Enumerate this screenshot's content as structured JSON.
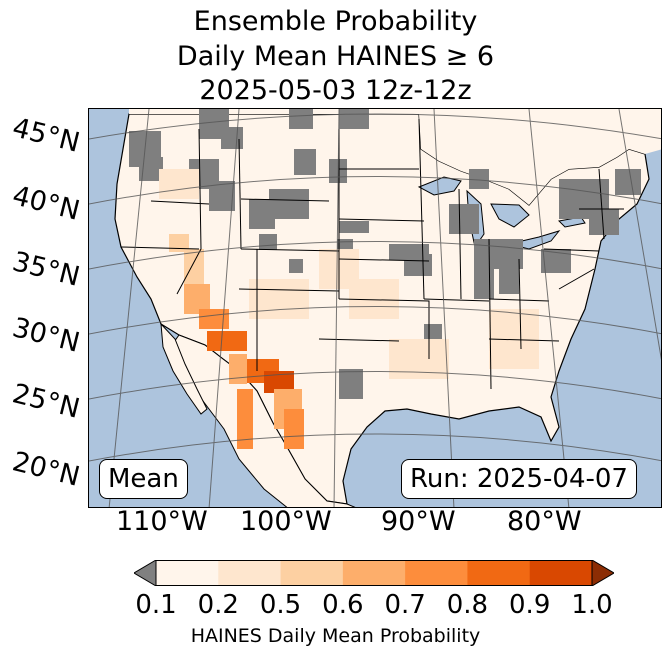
{
  "title": {
    "line1": "Ensemble Probability",
    "line2": "Daily Mean HAINES ≥ 6",
    "line3": "2025-05-03 12z-12z"
  },
  "map": {
    "lat_labels": [
      "45°N",
      "40°N",
      "35°N",
      "30°N",
      "25°N",
      "20°N"
    ],
    "lon_labels": [
      "110°W",
      "100°W",
      "90°W",
      "80°W"
    ],
    "mean_label": "Mean",
    "run_label": "Run: 2025-04-07",
    "colors": {
      "ocean": "#adc4dd",
      "missing": "#7f7f7f",
      "land": "#fff5eb"
    }
  },
  "colorbar": {
    "ticks": [
      "0.1",
      "0.2",
      "0.5",
      "0.6",
      "0.7",
      "0.8",
      "0.9",
      "1.0"
    ],
    "colors": [
      "#fff5eb",
      "#fee6ce",
      "#fdd0a2",
      "#fdae6b",
      "#fd8d3c",
      "#f16913",
      "#d94801"
    ],
    "under_color": "#808080",
    "over_color": "#8c2d04",
    "label": "HAINES Daily Mean Probability"
  }
}
